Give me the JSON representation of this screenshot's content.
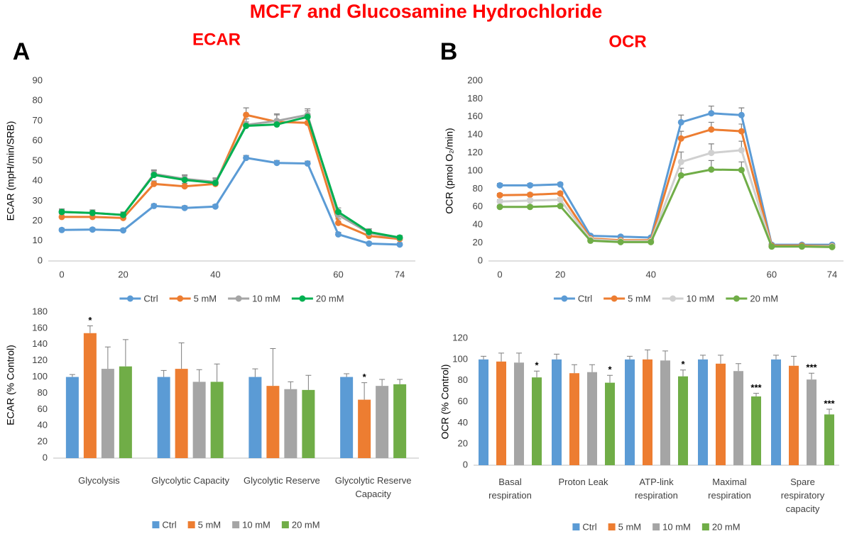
{
  "title": "MCF7 and Glucosamine Hydrochloride",
  "panels": [
    {
      "label": "A",
      "title": "ECAR"
    },
    {
      "label": "B",
      "title": "OCR"
    }
  ],
  "chart_data": [
    {
      "type": "line",
      "y_label": "ECAR (mpH/min/SRB)",
      "categories": [
        "0",
        null,
        "20",
        null,
        null,
        "40",
        null,
        null,
        null,
        "60",
        null,
        "74"
      ],
      "ylim": [
        0,
        90
      ],
      "yticks": [
        0,
        10,
        20,
        30,
        40,
        50,
        60,
        70,
        80,
        90
      ],
      "grid": false,
      "legend": "bottom",
      "series": [
        {
          "name": "Ctrl",
          "color": "#5b9bd5",
          "values": [
            15.5,
            15.7,
            15.3,
            27.5,
            26.5,
            27.2,
            51.5,
            49,
            48.7,
            13.3,
            8.7,
            8.2
          ],
          "errors": [
            0.8,
            0.8,
            0.8,
            1,
            1,
            1,
            1.2,
            1.2,
            1.2,
            1,
            0.8,
            0.8
          ]
        },
        {
          "name": "5 mM",
          "color": "#ed7d31",
          "values": [
            22,
            22,
            21.5,
            38.5,
            37.3,
            38.5,
            73,
            69.5,
            69,
            19,
            12.5,
            11
          ],
          "errors": [
            1.5,
            1.5,
            1.5,
            1.5,
            1.5,
            1.5,
            3.5,
            3.5,
            3,
            2,
            1.5,
            1
          ]
        },
        {
          "name": "10 mM",
          "color": "#a5a5a5",
          "values": [
            24.5,
            24,
            23,
            43.5,
            41,
            39.5,
            68,
            70,
            73,
            23,
            14,
            11.5
          ],
          "errors": [
            1.5,
            1.5,
            1.5,
            2,
            2,
            2,
            3,
            3.5,
            3,
            2,
            2,
            1
          ]
        },
        {
          "name": "20 mM",
          "color": "#00b050",
          "values": [
            24.5,
            24,
            23,
            43,
            40.5,
            39,
            67.5,
            68.2,
            72,
            24.5,
            14.5,
            11.7
          ],
          "errors": [
            1,
            1,
            1,
            2,
            2,
            2,
            2,
            2,
            3,
            2,
            1.5,
            1
          ]
        }
      ]
    },
    {
      "type": "line",
      "y_label": "OCR (pmol O₂/min)",
      "categories": [
        "0",
        null,
        "20",
        null,
        null,
        "40",
        null,
        null,
        null,
        "60",
        null,
        "74"
      ],
      "ylim": [
        0,
        200
      ],
      "yticks": [
        0,
        20,
        40,
        60,
        80,
        100,
        120,
        140,
        160,
        180,
        200
      ],
      "grid": false,
      "legend": "bottom",
      "series": [
        {
          "name": "Ctrl",
          "color": "#5b9bd5",
          "values": [
            84,
            84,
            85,
            28,
            27,
            26,
            154,
            164,
            162,
            18,
            18,
            18
          ],
          "errors": [
            2,
            2,
            2,
            1.5,
            1.5,
            1.5,
            8,
            8,
            8,
            1.5,
            1.5,
            1.5
          ]
        },
        {
          "name": "5 mM",
          "color": "#ed7d31",
          "values": [
            73,
            73.5,
            75,
            25,
            23,
            23,
            136,
            146,
            144,
            17,
            17,
            16.5
          ],
          "errors": [
            2,
            2,
            2,
            1.5,
            1.5,
            1.5,
            8,
            8,
            8,
            1.5,
            1.5,
            1.5
          ]
        },
        {
          "name": "10 mM",
          "color": "#d0d0d0",
          "values": [
            66,
            67,
            68,
            24,
            22,
            22,
            110,
            120,
            123,
            16,
            16,
            16
          ],
          "errors": [
            2,
            2,
            2,
            1.5,
            1.5,
            1.5,
            11,
            10,
            10,
            1.5,
            1.5,
            1.5
          ]
        },
        {
          "name": "20 mM",
          "color": "#70ad47",
          "values": [
            60,
            60,
            61,
            22.5,
            21,
            21,
            95,
            101.5,
            101,
            16,
            16,
            15.5
          ],
          "errors": [
            2,
            2,
            2,
            1.5,
            1.5,
            1.5,
            8,
            10,
            9,
            1.5,
            1.5,
            1.5
          ]
        }
      ]
    },
    {
      "type": "bar",
      "y_label": "ECAR (% Control)",
      "categories": [
        "Glycolysis",
        "Glycolytic Capacity",
        "Glycolytic Reserve",
        "Glycolytic Reserve Capacity"
      ],
      "ylim": [
        0,
        180
      ],
      "yticks": [
        0,
        20,
        40,
        60,
        80,
        100,
        120,
        140,
        160,
        180
      ],
      "grid": false,
      "legend": "bottom",
      "series": [
        {
          "name": "Ctrl",
          "color": "#5b9bd5",
          "values": [
            100,
            100,
            100,
            100
          ],
          "errors": [
            3,
            8,
            10,
            4
          ],
          "marks": [
            null,
            null,
            null,
            null
          ]
        },
        {
          "name": "5 mM",
          "color": "#ed7d31",
          "values": [
            154,
            110,
            89,
            72
          ],
          "errors": [
            9,
            32,
            46,
            21
          ],
          "marks": [
            "*",
            null,
            null,
            "*"
          ]
        },
        {
          "name": "10 mM",
          "color": "#a5a5a5",
          "values": [
            110,
            94,
            85,
            89
          ],
          "errors": [
            27,
            15,
            9,
            8
          ],
          "marks": [
            null,
            null,
            null,
            null
          ]
        },
        {
          "name": "20 mM",
          "color": "#70ad47",
          "values": [
            113,
            94,
            84,
            91
          ],
          "errors": [
            33,
            22,
            18,
            6
          ],
          "marks": [
            null,
            null,
            null,
            null
          ]
        }
      ]
    },
    {
      "type": "bar",
      "y_label": "OCR (% Control)",
      "categories": [
        "Basal respiration",
        "Proton Leak",
        "ATP-link respiration",
        "Maximal respiration",
        "Spare respiratory capacity"
      ],
      "ylim": [
        0,
        120
      ],
      "yticks": [
        0,
        20,
        40,
        60,
        80,
        100,
        120
      ],
      "grid": false,
      "legend": "bottom",
      "series": [
        {
          "name": "Ctrl",
          "color": "#5b9bd5",
          "values": [
            100,
            100,
            100,
            100,
            100
          ],
          "errors": [
            3,
            5,
            3,
            4,
            4
          ],
          "marks": [
            null,
            null,
            null,
            null,
            null
          ]
        },
        {
          "name": "5 mM",
          "color": "#ed7d31",
          "values": [
            98,
            87,
            100,
            96,
            94
          ],
          "errors": [
            8,
            8,
            9,
            8,
            9
          ],
          "marks": [
            null,
            null,
            null,
            null,
            null
          ]
        },
        {
          "name": "10 mM",
          "color": "#a5a5a5",
          "values": [
            97,
            88,
            99,
            89,
            81
          ],
          "errors": [
            9,
            7,
            9,
            7,
            6
          ],
          "marks": [
            null,
            null,
            null,
            null,
            "***"
          ]
        },
        {
          "name": "20 mM",
          "color": "#70ad47",
          "values": [
            83,
            78,
            84,
            65,
            48
          ],
          "errors": [
            6,
            7,
            6,
            3,
            5
          ],
          "marks": [
            "*",
            "*",
            "*",
            "***",
            "***"
          ]
        }
      ]
    }
  ]
}
